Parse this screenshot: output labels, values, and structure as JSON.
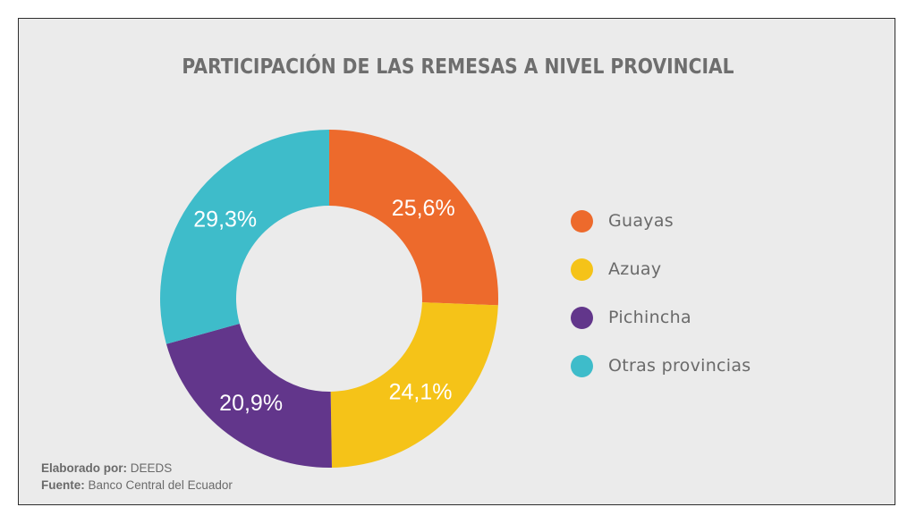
{
  "title": "PARTICIPACIÓN DE LAS REMESAS A NIVEL PROVINCIAL",
  "chart_data": {
    "type": "pie",
    "donut": true,
    "title": "PARTICIPACIÓN DE LAS REMESAS A NIVEL PROVINCIAL",
    "categories": [
      "Guayas",
      "Azuay",
      "Pichincha",
      "Otras provincias"
    ],
    "values": [
      25.6,
      24.1,
      20.9,
      29.3
    ],
    "value_labels": [
      "25,6%",
      "24,1%",
      "20,9%",
      "29,3%"
    ],
    "colors": [
      "#ed6a2c",
      "#f5c318",
      "#62368b",
      "#3ebcca"
    ],
    "legend_position": "right"
  },
  "legend": [
    {
      "label": "Guayas",
      "color": "#ed6a2c"
    },
    {
      "label": "Azuay",
      "color": "#f5c318"
    },
    {
      "label": "Pichincha",
      "color": "#62368b"
    },
    {
      "label": "Otras provincias",
      "color": "#3ebcca"
    }
  ],
  "credits": {
    "elaborado_label": "Elaborado por:",
    "elaborado_value": " DEEDS",
    "fuente_label": "Fuente:",
    "fuente_value": " Banco Central del Ecuador"
  }
}
